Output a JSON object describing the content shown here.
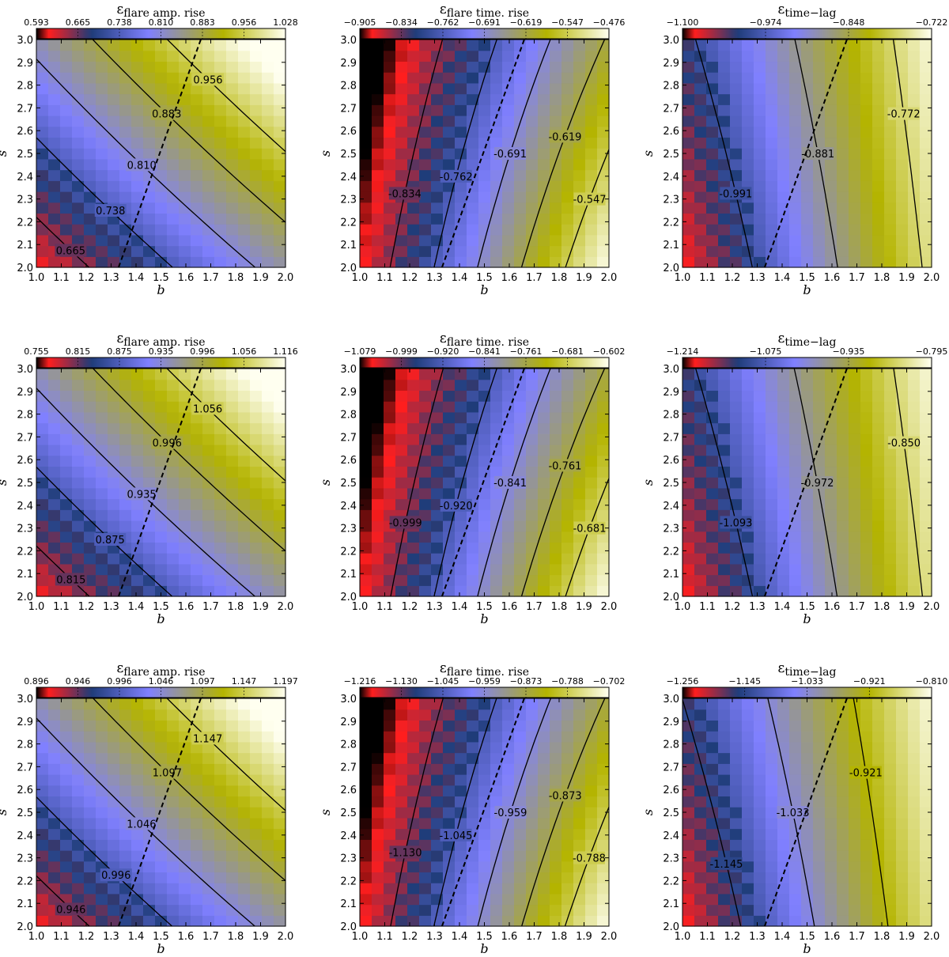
{
  "colors": {
    "low": "#000000",
    "red": "#ff1e1e",
    "navy": "#1e3c78",
    "periwinkle": "#8080ff",
    "olive": "#b4b400",
    "cream": "#fffff0",
    "contour": "#000000"
  },
  "chart_data": [
    {
      "type": "heatmap",
      "row": 0,
      "col": 0,
      "kind": "amp",
      "title": "ε",
      "title_sub": "flare amp. rise",
      "xlabel": "b",
      "ylabel": "s",
      "xlim": [
        1.0,
        2.0
      ],
      "ylim": [
        2.0,
        3.0
      ],
      "x_ticks": [
        "1.0",
        "1.1",
        "1.2",
        "1.3",
        "1.4",
        "1.5",
        "1.6",
        "1.7",
        "1.8",
        "1.9",
        "2.0"
      ],
      "y_ticks": [
        "2.0",
        "2.1",
        "2.2",
        "2.3",
        "2.4",
        "2.5",
        "2.6",
        "2.7",
        "2.8",
        "2.9",
        "3.0"
      ],
      "vmin": 0.593,
      "vmax": 1.028,
      "colorbar_ticks": [
        "0.593",
        "0.665",
        "0.738",
        "0.810",
        "0.883",
        "0.956",
        "1.028"
      ],
      "contour_levels": [
        "0.665",
        "0.738",
        "0.810",
        "0.883",
        "0.956"
      ],
      "dashed_line": [
        [
          1.33,
          2.0
        ],
        [
          1.66,
          3.0
        ]
      ]
    },
    {
      "type": "heatmap",
      "row": 0,
      "col": 1,
      "kind": "time",
      "title": "ε",
      "title_sub": "flare time. rise",
      "xlabel": "b",
      "ylabel": "s",
      "xlim": [
        1.0,
        2.0
      ],
      "ylim": [
        2.0,
        3.0
      ],
      "x_ticks": [
        "1.0",
        "1.1",
        "1.2",
        "1.3",
        "1.4",
        "1.5",
        "1.6",
        "1.7",
        "1.8",
        "1.9",
        "2.0"
      ],
      "y_ticks": [
        "2.0",
        "2.1",
        "2.2",
        "2.3",
        "2.4",
        "2.5",
        "2.6",
        "2.7",
        "2.8",
        "2.9",
        "3.0"
      ],
      "vmin": -0.905,
      "vmax": -0.476,
      "colorbar_ticks": [
        "−0.905",
        "−0.834",
        "−0.762",
        "−0.691",
        "−0.619",
        "−0.547",
        "−0.476"
      ],
      "contour_levels": [
        "-0.834",
        "-0.762",
        "-0.691",
        "-0.619",
        "-0.547"
      ],
      "dashed_line": [
        [
          1.33,
          2.0
        ],
        [
          1.66,
          3.0
        ]
      ]
    },
    {
      "type": "heatmap",
      "row": 0,
      "col": 2,
      "kind": "lag",
      "title": "ε",
      "title_sub": "time−lag",
      "xlabel": "b",
      "ylabel": "s",
      "xlim": [
        1.0,
        2.0
      ],
      "ylim": [
        2.0,
        3.0
      ],
      "x_ticks": [
        "1.0",
        "1.1",
        "1.2",
        "1.3",
        "1.4",
        "1.5",
        "1.6",
        "1.7",
        "1.8",
        "1.9",
        "2.0"
      ],
      "y_ticks": [
        "2.0",
        "2.1",
        "2.2",
        "2.3",
        "2.4",
        "2.5",
        "2.6",
        "2.7",
        "2.8",
        "2.9",
        "3.0"
      ],
      "vmin": -1.1,
      "vmax": -0.722,
      "colorbar_ticks": [
        "−1.100",
        "−0.974",
        "−0.848",
        "−0.722"
      ],
      "contour_levels": [
        "-0.991",
        "-0.881",
        "-0.772"
      ],
      "dashed_line": [
        [
          1.33,
          2.0
        ],
        [
          1.66,
          3.0
        ]
      ]
    },
    {
      "type": "heatmap",
      "row": 1,
      "col": 0,
      "kind": "amp",
      "title": "ε",
      "title_sub": "flare amp. rise",
      "xlabel": "b",
      "ylabel": "s",
      "xlim": [
        1.0,
        2.0
      ],
      "ylim": [
        2.0,
        3.0
      ],
      "x_ticks": [
        "1.0",
        "1.1",
        "1.2",
        "1.3",
        "1.4",
        "1.5",
        "1.6",
        "1.7",
        "1.8",
        "1.9",
        "2.0"
      ],
      "y_ticks": [
        "2.0",
        "2.1",
        "2.2",
        "2.3",
        "2.4",
        "2.5",
        "2.6",
        "2.7",
        "2.8",
        "2.9",
        "3.0"
      ],
      "vmin": 0.755,
      "vmax": 1.116,
      "colorbar_ticks": [
        "0.755",
        "0.815",
        "0.875",
        "0.935",
        "0.996",
        "1.056",
        "1.116"
      ],
      "contour_levels": [
        "0.815",
        "0.875",
        "0.935",
        "0.996",
        "1.056"
      ],
      "dashed_line": [
        [
          1.33,
          2.0
        ],
        [
          1.66,
          3.0
        ]
      ]
    },
    {
      "type": "heatmap",
      "row": 1,
      "col": 1,
      "kind": "time",
      "title": "ε",
      "title_sub": "flare time. rise",
      "xlabel": "b",
      "ylabel": "s",
      "xlim": [
        1.0,
        2.0
      ],
      "ylim": [
        2.0,
        3.0
      ],
      "x_ticks": [
        "1.0",
        "1.1",
        "1.2",
        "1.3",
        "1.4",
        "1.5",
        "1.6",
        "1.7",
        "1.8",
        "1.9",
        "2.0"
      ],
      "y_ticks": [
        "2.0",
        "2.1",
        "2.2",
        "2.3",
        "2.4",
        "2.5",
        "2.6",
        "2.7",
        "2.8",
        "2.9",
        "3.0"
      ],
      "vmin": -1.079,
      "vmax": -0.602,
      "colorbar_ticks": [
        "−1.079",
        "−0.999",
        "−0.920",
        "−0.841",
        "−0.761",
        "−0.681",
        "−0.602"
      ],
      "contour_levels": [
        "-0.999",
        "-0.920",
        "-0.841",
        "-0.761",
        "-0.681"
      ],
      "dashed_line": [
        [
          1.33,
          2.0
        ],
        [
          1.66,
          3.0
        ]
      ]
    },
    {
      "type": "heatmap",
      "row": 1,
      "col": 2,
      "kind": "lag",
      "title": "ε",
      "title_sub": "time−lag",
      "xlabel": "b",
      "ylabel": "s",
      "xlim": [
        1.0,
        2.0
      ],
      "ylim": [
        2.0,
        3.0
      ],
      "x_ticks": [
        "1.0",
        "1.1",
        "1.2",
        "1.3",
        "1.4",
        "1.5",
        "1.6",
        "1.7",
        "1.8",
        "1.9",
        "2.0"
      ],
      "y_ticks": [
        "2.0",
        "2.1",
        "2.2",
        "2.3",
        "2.4",
        "2.5",
        "2.6",
        "2.7",
        "2.8",
        "2.9",
        "3.0"
      ],
      "vmin": -1.214,
      "vmax": -0.795,
      "colorbar_ticks": [
        "−1.214",
        "−1.075",
        "−0.935",
        "−0.795"
      ],
      "contour_levels": [
        "-1.093",
        "-0.972",
        "-0.850"
      ],
      "dashed_line": [
        [
          1.33,
          2.0
        ],
        [
          1.66,
          3.0
        ]
      ]
    },
    {
      "type": "heatmap",
      "row": 2,
      "col": 0,
      "kind": "amp",
      "title": "ε",
      "title_sub": "flare amp. rise",
      "xlabel": "b",
      "ylabel": "s",
      "xlim": [
        1.0,
        2.0
      ],
      "ylim": [
        2.0,
        3.0
      ],
      "x_ticks": [
        "1.0",
        "1.1",
        "1.2",
        "1.3",
        "1.4",
        "1.5",
        "1.6",
        "1.7",
        "1.8",
        "1.9",
        "2.0"
      ],
      "y_ticks": [
        "2.0",
        "2.1",
        "2.2",
        "2.3",
        "2.4",
        "2.5",
        "2.6",
        "2.7",
        "2.8",
        "2.9",
        "3.0"
      ],
      "vmin": 0.896,
      "vmax": 1.197,
      "colorbar_ticks": [
        "0.896",
        "0.946",
        "0.996",
        "1.046",
        "1.097",
        "1.147",
        "1.197"
      ],
      "contour_levels": [
        "0.946",
        "0.996",
        "1.046",
        "1.097",
        "1.147"
      ],
      "dashed_line": [
        [
          1.33,
          2.0
        ],
        [
          1.66,
          3.0
        ]
      ]
    },
    {
      "type": "heatmap",
      "row": 2,
      "col": 1,
      "kind": "time",
      "title": "ε",
      "title_sub": "flare time. rise",
      "xlabel": "b",
      "ylabel": "s",
      "xlim": [
        1.0,
        2.0
      ],
      "ylim": [
        2.0,
        3.0
      ],
      "x_ticks": [
        "1.0",
        "1.1",
        "1.2",
        "1.3",
        "1.4",
        "1.5",
        "1.6",
        "1.7",
        "1.8",
        "1.9",
        "2.0"
      ],
      "y_ticks": [
        "2.0",
        "2.1",
        "2.2",
        "2.3",
        "2.4",
        "2.5",
        "2.6",
        "2.7",
        "2.8",
        "2.9",
        "3.0"
      ],
      "vmin": -1.216,
      "vmax": -0.702,
      "colorbar_ticks": [
        "−1.216",
        "−1.130",
        "−1.045",
        "−0.959",
        "−0.873",
        "−0.788",
        "−0.702"
      ],
      "contour_levels": [
        "-1.130",
        "-1.045",
        "-0.959",
        "-0.873",
        "-0.788"
      ],
      "dashed_line": [
        [
          1.33,
          2.0
        ],
        [
          1.66,
          3.0
        ]
      ]
    },
    {
      "type": "heatmap",
      "row": 2,
      "col": 2,
      "kind": "lag",
      "title": "ε",
      "title_sub": "time−lag",
      "xlabel": "b",
      "ylabel": "s",
      "xlim": [
        1.0,
        2.0
      ],
      "ylim": [
        2.0,
        3.0
      ],
      "x_ticks": [
        "1.0",
        "1.1",
        "1.2",
        "1.3",
        "1.4",
        "1.5",
        "1.6",
        "1.7",
        "1.8",
        "1.9",
        "2.0"
      ],
      "y_ticks": [
        "2.0",
        "2.1",
        "2.2",
        "2.3",
        "2.4",
        "2.5",
        "2.6",
        "2.7",
        "2.8",
        "2.9",
        "3.0"
      ],
      "vmin": -1.256,
      "vmax": -0.81,
      "colorbar_ticks": [
        "−1.256",
        "−1.145",
        "−1.033",
        "−0.921",
        "−0.810"
      ],
      "contour_levels": [
        "-1.145",
        "-1.033",
        "-0.921"
      ],
      "dashed_line": [
        [
          1.33,
          2.0
        ],
        [
          1.66,
          3.0
        ]
      ]
    }
  ]
}
